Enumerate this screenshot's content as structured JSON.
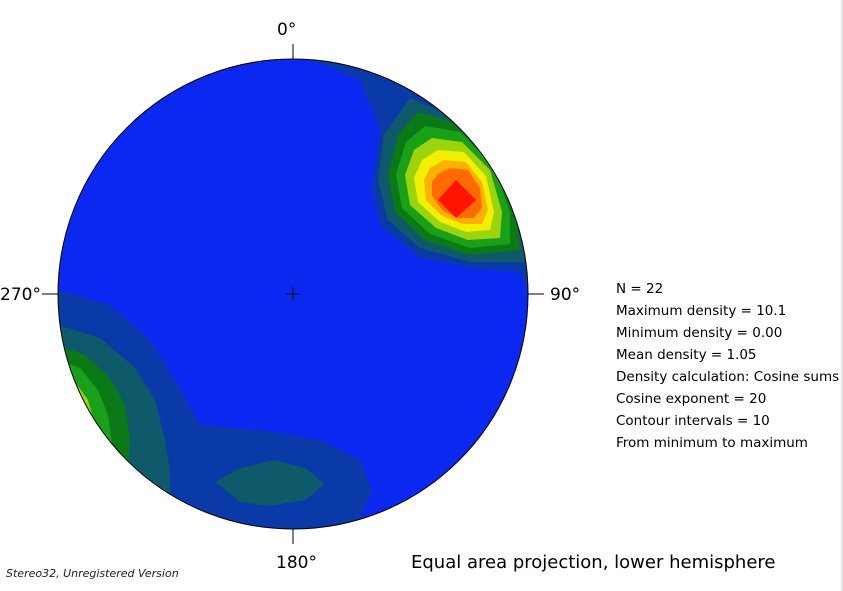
{
  "chart_data": {
    "type": "heatmap",
    "projection": "Equal area projection, lower hemisphere",
    "compass_labels": {
      "north": "0°",
      "east": "90°",
      "south": "180°",
      "west": "270°"
    },
    "statistics": [
      "N = 22",
      "Maximum density = 10.1",
      "Minimum density = 0.00",
      "Mean density = 1.05",
      "Density calculation: Cosine sums",
      "Cosine exponent = 20",
      "Contour intervals = 10",
      "From minimum to maximum"
    ],
    "n": 22,
    "max_density": 10.1,
    "min_density": 0.0,
    "mean_density": 1.05,
    "contour_intervals": 10,
    "colors": {
      "background": "#0b28f0",
      "level1": "#0a3aa8",
      "level2": "#0f5a6a",
      "level3": "#0b7a16",
      "level4": "#18a018",
      "level5": "#9bd40f",
      "level6": "#f0f000",
      "level7": "#ffb000",
      "level8": "#ff6a00",
      "level9": "#ff1400"
    }
  },
  "footer": {
    "watermark": "Stereo32, Unregistered Version"
  }
}
